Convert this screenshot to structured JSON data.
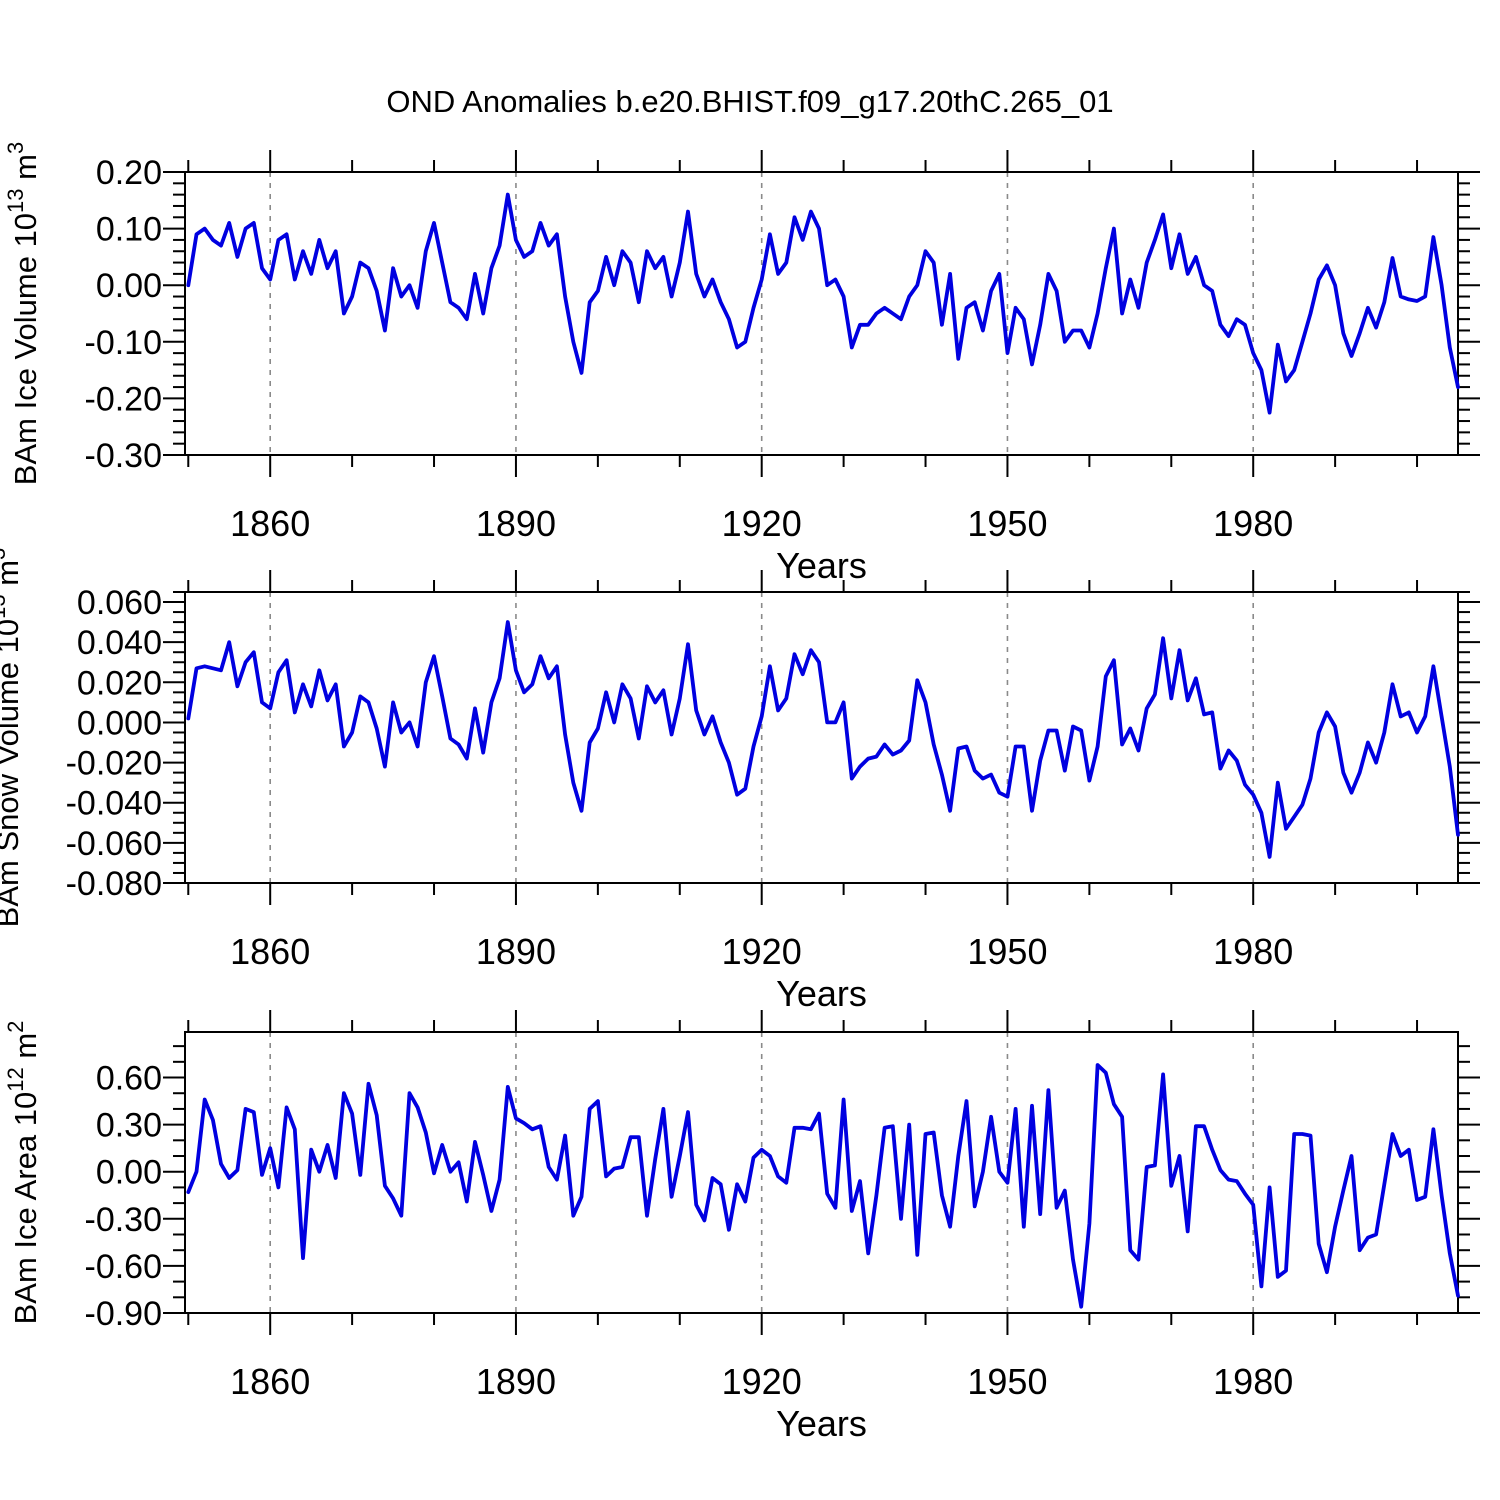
{
  "title": "OND Anomalies b.e20.BHIST.f09_g17.20thC.265_01",
  "colors": {
    "line": "#0000e0",
    "axis": "#000000",
    "grid": "#8a8a8a",
    "background": "#ffffff"
  },
  "chart_data": [
    {
      "id": "ice-volume",
      "type": "line",
      "ylabel_text": "BAm Ice Volume 10^13 m^3",
      "ylabel_segments": [
        {
          "text": "BAm Ice Volume 10"
        },
        {
          "text": "13",
          "sup": true
        },
        {
          "text": " m"
        },
        {
          "text": "3",
          "sup": true
        }
      ],
      "xlabel": "Years",
      "x_start": 1850,
      "x_end": 2005,
      "xlim": [
        1849.6,
        2005
      ],
      "ylim": [
        -0.3,
        0.2
      ],
      "grid_on": true,
      "grid_years": [
        1860,
        1890,
        1920,
        1950,
        1980
      ],
      "x_major_ticks": [
        {
          "value": 1860,
          "label": "1860"
        },
        {
          "value": 1890,
          "label": "1890"
        },
        {
          "value": 1920,
          "label": "1920"
        },
        {
          "value": 1950,
          "label": "1950"
        },
        {
          "value": 1980,
          "label": "1980"
        }
      ],
      "x_minor_ticks": [
        1850,
        1870,
        1880,
        1900,
        1910,
        1930,
        1940,
        1960,
        1970,
        1990,
        2000
      ],
      "y_major_ticks": [
        {
          "value": 0.2,
          "label": "0.20"
        },
        {
          "value": 0.1,
          "label": "0.10"
        },
        {
          "value": 0.0,
          "label": "0.00"
        },
        {
          "value": -0.1,
          "label": "-0.10"
        },
        {
          "value": -0.2,
          "label": "-0.20"
        },
        {
          "value": -0.3,
          "label": "-0.30"
        }
      ],
      "y_minor_step": 0.02,
      "values": [
        0.0,
        0.09,
        0.1,
        0.08,
        0.07,
        0.11,
        0.05,
        0.1,
        0.11,
        0.03,
        0.01,
        0.08,
        0.09,
        0.01,
        0.06,
        0.02,
        0.08,
        0.03,
        0.06,
        -0.05,
        -0.02,
        0.04,
        0.03,
        -0.01,
        -0.08,
        0.03,
        -0.02,
        0.0,
        -0.04,
        0.06,
        0.11,
        0.04,
        -0.03,
        -0.04,
        -0.06,
        0.02,
        -0.05,
        0.03,
        0.07,
        0.16,
        0.08,
        0.05,
        0.06,
        0.11,
        0.07,
        0.09,
        -0.02,
        -0.1,
        -0.155,
        -0.03,
        -0.01,
        0.05,
        0.0,
        0.06,
        0.04,
        -0.03,
        0.06,
        0.03,
        0.05,
        -0.02,
        0.04,
        0.13,
        0.02,
        -0.02,
        0.01,
        -0.03,
        -0.06,
        -0.11,
        -0.1,
        -0.04,
        0.01,
        0.09,
        0.02,
        0.04,
        0.12,
        0.08,
        0.13,
        0.1,
        0.0,
        0.01,
        -0.02,
        -0.11,
        -0.07,
        -0.07,
        -0.05,
        -0.04,
        -0.05,
        -0.06,
        -0.02,
        0.0,
        0.06,
        0.04,
        -0.07,
        0.02,
        -0.13,
        -0.04,
        -0.03,
        -0.08,
        -0.01,
        0.02,
        -0.12,
        -0.04,
        -0.06,
        -0.14,
        -0.07,
        0.02,
        -0.01,
        -0.1,
        -0.08,
        -0.08,
        -0.11,
        -0.05,
        0.03,
        0.1,
        -0.05,
        0.01,
        -0.04,
        0.04,
        0.08,
        0.125,
        0.03,
        0.09,
        0.02,
        0.05,
        0.0,
        -0.01,
        -0.07,
        -0.09,
        -0.06,
        -0.07,
        -0.12,
        -0.15,
        -0.225,
        -0.105,
        -0.17,
        -0.15,
        -0.1,
        -0.05,
        0.01,
        0.035,
        0.0,
        -0.085,
        -0.125,
        -0.085,
        -0.04,
        -0.075,
        -0.03,
        0.048,
        -0.02,
        -0.025,
        -0.028,
        -0.02,
        0.085,
        0.0,
        -0.11,
        -0.18
      ]
    },
    {
      "id": "snow-volume",
      "type": "line",
      "ylabel_text": "BAm Snow Volume 10^13 m^3",
      "ylabel_segments": [
        {
          "text": "BAm Snow Volume 10"
        },
        {
          "text": "13",
          "sup": true
        },
        {
          "text": " m"
        },
        {
          "text": "3",
          "sup": true
        }
      ],
      "xlabel": "Years",
      "x_start": 1850,
      "x_end": 2005,
      "xlim": [
        1849.6,
        2005
      ],
      "ylim": [
        -0.08,
        0.065
      ],
      "grid_on": true,
      "grid_years": [
        1860,
        1890,
        1920,
        1950,
        1980
      ],
      "x_major_ticks": [
        {
          "value": 1860,
          "label": "1860"
        },
        {
          "value": 1890,
          "label": "1890"
        },
        {
          "value": 1920,
          "label": "1920"
        },
        {
          "value": 1950,
          "label": "1950"
        },
        {
          "value": 1980,
          "label": "1980"
        }
      ],
      "x_minor_ticks": [
        1850,
        1870,
        1880,
        1900,
        1910,
        1930,
        1940,
        1960,
        1970,
        1990,
        2000
      ],
      "y_major_ticks": [
        {
          "value": 0.06,
          "label": "0.060"
        },
        {
          "value": 0.04,
          "label": "0.040"
        },
        {
          "value": 0.02,
          "label": "0.020"
        },
        {
          "value": 0.0,
          "label": "0.000"
        },
        {
          "value": -0.02,
          "label": "-0.020"
        },
        {
          "value": -0.04,
          "label": "-0.040"
        },
        {
          "value": -0.06,
          "label": "-0.060"
        },
        {
          "value": -0.08,
          "label": "-0.080"
        }
      ],
      "y_minor_step": 0.005,
      "values": [
        0.002,
        0.027,
        0.028,
        0.027,
        0.026,
        0.04,
        0.018,
        0.03,
        0.035,
        0.01,
        0.007,
        0.025,
        0.031,
        0.005,
        0.019,
        0.008,
        0.026,
        0.011,
        0.019,
        -0.012,
        -0.005,
        0.013,
        0.01,
        -0.003,
        -0.022,
        0.01,
        -0.005,
        0.0,
        -0.012,
        0.02,
        0.033,
        0.013,
        -0.008,
        -0.011,
        -0.018,
        0.007,
        -0.015,
        0.01,
        0.022,
        0.05,
        0.026,
        0.015,
        0.019,
        0.033,
        0.022,
        0.028,
        -0.006,
        -0.03,
        -0.044,
        -0.01,
        -0.003,
        0.015,
        0.0,
        0.019,
        0.012,
        -0.008,
        0.018,
        0.01,
        0.016,
        -0.006,
        0.012,
        0.039,
        0.006,
        -0.006,
        0.003,
        -0.01,
        -0.02,
        -0.036,
        -0.033,
        -0.012,
        0.003,
        0.028,
        0.006,
        0.012,
        0.034,
        0.024,
        0.036,
        0.03,
        0.0,
        0.0,
        0.01,
        -0.028,
        -0.022,
        -0.018,
        -0.017,
        -0.011,
        -0.016,
        -0.014,
        -0.009,
        0.021,
        0.01,
        -0.011,
        -0.026,
        -0.044,
        -0.013,
        -0.012,
        -0.024,
        -0.028,
        -0.026,
        -0.035,
        -0.037,
        -0.012,
        -0.012,
        -0.044,
        -0.019,
        -0.004,
        -0.004,
        -0.024,
        -0.002,
        -0.004,
        -0.029,
        -0.012,
        0.023,
        0.031,
        -0.011,
        -0.003,
        -0.014,
        0.007,
        0.014,
        0.042,
        0.012,
        0.036,
        0.011,
        0.022,
        0.004,
        0.005,
        -0.023,
        -0.014,
        -0.019,
        -0.031,
        -0.036,
        -0.045,
        -0.067,
        -0.03,
        -0.053,
        -0.047,
        -0.041,
        -0.028,
        -0.005,
        0.005,
        -0.002,
        -0.025,
        -0.035,
        -0.025,
        -0.01,
        -0.02,
        -0.005,
        0.019,
        0.003,
        0.005,
        -0.005,
        0.003,
        0.028,
        0.003,
        -0.022,
        -0.056
      ]
    },
    {
      "id": "ice-area",
      "type": "line",
      "ylabel_text": "BAm Ice Area 10^12 m^2",
      "ylabel_segments": [
        {
          "text": "BAm Ice Area 10"
        },
        {
          "text": "12",
          "sup": true
        },
        {
          "text": " m"
        },
        {
          "text": "2",
          "sup": true
        }
      ],
      "xlabel": "Years",
      "x_start": 1850,
      "x_end": 2005,
      "xlim": [
        1849.6,
        2005
      ],
      "ylim": [
        -0.9,
        0.89
      ],
      "grid_on": true,
      "grid_years": [
        1860,
        1890,
        1920,
        1950,
        1980
      ],
      "x_major_ticks": [
        {
          "value": 1860,
          "label": "1860"
        },
        {
          "value": 1890,
          "label": "1890"
        },
        {
          "value": 1920,
          "label": "1920"
        },
        {
          "value": 1950,
          "label": "1950"
        },
        {
          "value": 1980,
          "label": "1980"
        }
      ],
      "x_minor_ticks": [
        1850,
        1870,
        1880,
        1900,
        1910,
        1930,
        1940,
        1960,
        1970,
        1990,
        2000
      ],
      "y_major_ticks": [
        {
          "value": 0.6,
          "label": "0.60"
        },
        {
          "value": 0.3,
          "label": "0.30"
        },
        {
          "value": 0.0,
          "label": "0.00"
        },
        {
          "value": -0.3,
          "label": "-0.30"
        },
        {
          "value": -0.6,
          "label": "-0.60"
        },
        {
          "value": -0.9,
          "label": "-0.90"
        }
      ],
      "y_minor_step": 0.1,
      "values": [
        -0.13,
        0.0,
        0.46,
        0.33,
        0.05,
        -0.04,
        0.01,
        0.4,
        0.38,
        -0.02,
        0.15,
        -0.1,
        0.41,
        0.27,
        -0.55,
        0.14,
        0.0,
        0.17,
        -0.04,
        0.5,
        0.37,
        -0.02,
        0.56,
        0.36,
        -0.09,
        -0.17,
        -0.28,
        0.5,
        0.41,
        0.25,
        -0.01,
        0.17,
        0.0,
        0.06,
        -0.19,
        0.19,
        -0.02,
        -0.25,
        -0.05,
        0.54,
        0.34,
        0.31,
        0.27,
        0.29,
        0.03,
        -0.05,
        0.23,
        -0.28,
        -0.16,
        0.4,
        0.45,
        -0.03,
        0.02,
        0.03,
        0.22,
        0.22,
        -0.28,
        0.08,
        0.4,
        -0.16,
        0.1,
        0.38,
        -0.21,
        -0.31,
        -0.04,
        -0.08,
        -0.37,
        -0.08,
        -0.19,
        0.09,
        0.14,
        0.1,
        -0.03,
        -0.07,
        0.28,
        0.28,
        0.27,
        0.37,
        -0.14,
        -0.23,
        0.46,
        -0.25,
        -0.06,
        -0.52,
        -0.15,
        0.28,
        0.29,
        -0.3,
        0.3,
        -0.53,
        0.24,
        0.25,
        -0.15,
        -0.35,
        0.1,
        0.45,
        -0.22,
        0.0,
        0.35,
        0.0,
        -0.07,
        0.4,
        -0.35,
        0.42,
        -0.27,
        0.52,
        -0.23,
        -0.12,
        -0.56,
        -0.86,
        -0.33,
        0.68,
        0.63,
        0.43,
        0.35,
        -0.5,
        -0.56,
        0.03,
        0.04,
        0.62,
        -0.09,
        0.1,
        -0.38,
        0.29,
        0.29,
        0.14,
        0.01,
        -0.05,
        -0.06,
        -0.14,
        -0.21,
        -0.73,
        -0.1,
        -0.67,
        -0.63,
        0.24,
        0.24,
        0.23,
        -0.46,
        -0.64,
        -0.35,
        -0.12,
        0.1,
        -0.5,
        -0.42,
        -0.4,
        -0.08,
        0.24,
        0.1,
        0.14,
        -0.18,
        -0.16,
        0.27,
        -0.15,
        -0.52,
        -0.79
      ]
    }
  ]
}
